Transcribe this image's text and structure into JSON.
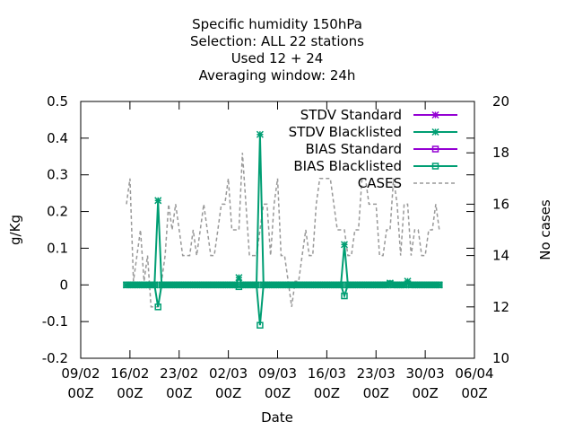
{
  "chart_data": {
    "type": "line",
    "title_lines": [
      "Specific humidity 150hPa",
      "Selection: ALL      22 stations",
      "Used  12 + 24",
      "Averaging window: 24h"
    ],
    "xlabel": "Date",
    "ylabel": "g/Kg",
    "y2label": "No cases",
    "ylim": [
      -0.2,
      0.5
    ],
    "yticks": [
      -0.2,
      -0.1,
      0,
      0.1,
      0.2,
      0.3,
      0.4,
      0.5
    ],
    "ytick_labels": [
      "-0.2",
      "-0.1",
      "0",
      "0.1",
      "0.2",
      "0.3",
      "0.4",
      "0.5"
    ],
    "y2lim": [
      10,
      20
    ],
    "y2ticks": [
      10,
      12,
      14,
      16,
      18,
      20
    ],
    "y2tick_labels": [
      "10",
      "12",
      "14",
      "16",
      "18",
      "20"
    ],
    "xlim": [
      0,
      56
    ],
    "xticks": [
      {
        "x": 0,
        "label1": "09/02",
        "label2": "00Z"
      },
      {
        "x": 7,
        "label1": "16/02",
        "label2": "00Z"
      },
      {
        "x": 14,
        "label1": "23/02",
        "label2": "00Z"
      },
      {
        "x": 21,
        "label1": "02/03",
        "label2": "00Z"
      },
      {
        "x": 28,
        "label1": "09/03",
        "label2": "00Z"
      },
      {
        "x": 35,
        "label1": "16/03",
        "label2": "00Z"
      },
      {
        "x": 42,
        "label1": "23/03",
        "label2": "00Z"
      },
      {
        "x": 49,
        "label1": "30/03",
        "label2": "00Z"
      },
      {
        "x": 56,
        "label1": "06/04",
        "label2": "00Z"
      }
    ],
    "legend_position": "top-right",
    "series": [
      {
        "name": "STDV Standard",
        "color": "#9400d3",
        "marker": "star",
        "axis": "y1",
        "x": [],
        "y": []
      },
      {
        "name": "STDV Blacklisted",
        "color": "#009e73",
        "marker": "star",
        "axis": "y1",
        "x": [
          6.5,
          7,
          7.5,
          8,
          8.5,
          9,
          9.5,
          10,
          10.5,
          11,
          11.5,
          12,
          12.5,
          13,
          13.5,
          14,
          14.5,
          15,
          15.5,
          16,
          16.5,
          17,
          17.5,
          18,
          18.5,
          19,
          19.5,
          20,
          20.5,
          21,
          21.5,
          22,
          22.5,
          23,
          23.5,
          24,
          24.5,
          25,
          25.5,
          26,
          26.5,
          27,
          27.5,
          28,
          28.5,
          29,
          29.5,
          30,
          30.5,
          31,
          31.5,
          32,
          32.5,
          33,
          33.5,
          34,
          34.5,
          35,
          35.5,
          36,
          36.5,
          37,
          37.5,
          38,
          38.5,
          39,
          39.5,
          40,
          40.5,
          41,
          41.5,
          42,
          42.5,
          43,
          43.5,
          44,
          44.5,
          45,
          45.5,
          46,
          46.5,
          47,
          47.5,
          48,
          48.5,
          49,
          49.5,
          50,
          50.5,
          51
        ],
        "y": [
          0,
          0,
          0,
          0,
          0,
          0,
          0,
          0,
          0,
          0.23,
          0,
          0,
          0,
          0,
          0,
          0,
          0,
          0,
          0,
          0,
          0,
          0,
          0,
          0,
          0,
          0,
          0,
          0,
          0,
          0,
          0,
          0,
          0.02,
          0,
          0,
          0,
          0,
          0,
          0.41,
          0,
          0,
          0,
          0,
          0,
          0,
          0,
          0,
          0,
          0,
          0,
          0,
          0,
          0,
          0,
          0,
          0,
          0,
          0,
          0,
          0,
          0,
          0,
          0.11,
          0,
          0,
          0,
          0,
          0,
          0,
          0,
          0,
          0,
          0,
          0,
          0,
          0.005,
          0,
          0,
          0,
          0,
          0.01,
          0,
          0,
          0,
          0,
          0,
          0,
          0,
          0,
          0
        ]
      },
      {
        "name": "BIAS Standard",
        "color": "#9400d3",
        "marker": "square",
        "axis": "y1",
        "x": [],
        "y": []
      },
      {
        "name": "BIAS Blacklisted",
        "color": "#009e73",
        "marker": "square",
        "axis": "y1",
        "x": [
          6.5,
          7,
          7.5,
          8,
          8.5,
          9,
          9.5,
          10,
          10.5,
          11,
          11.5,
          12,
          12.5,
          13,
          13.5,
          14,
          14.5,
          15,
          15.5,
          16,
          16.5,
          17,
          17.5,
          18,
          18.5,
          19,
          19.5,
          20,
          20.5,
          21,
          21.5,
          22,
          22.5,
          23,
          23.5,
          24,
          24.5,
          25,
          25.5,
          26,
          26.5,
          27,
          27.5,
          28,
          28.5,
          29,
          29.5,
          30,
          30.5,
          31,
          31.5,
          32,
          32.5,
          33,
          33.5,
          34,
          34.5,
          35,
          35.5,
          36,
          36.5,
          37,
          37.5,
          38,
          38.5,
          39,
          39.5,
          40,
          40.5,
          41,
          41.5,
          42,
          42.5,
          43,
          43.5,
          44,
          44.5,
          45,
          45.5,
          46,
          46.5,
          47,
          47.5,
          48,
          48.5,
          49,
          49.5,
          50,
          50.5,
          51
        ],
        "y": [
          0,
          0,
          0,
          0,
          0,
          0,
          0,
          0,
          0,
          -0.06,
          0,
          0,
          0,
          0,
          0,
          0,
          0,
          0,
          0,
          0,
          0,
          0,
          0,
          0,
          0,
          0,
          0,
          0,
          0,
          0,
          0,
          0,
          -0.005,
          0,
          0,
          0,
          0,
          0,
          -0.11,
          0,
          0,
          0,
          0,
          0,
          0,
          0,
          0,
          0,
          0,
          0,
          0,
          0,
          0,
          0,
          0,
          0,
          0,
          0,
          0,
          0,
          0,
          0,
          -0.03,
          0,
          0,
          0,
          0,
          0,
          0,
          0,
          0,
          0,
          0,
          0,
          0,
          0.003,
          0,
          0,
          0,
          0,
          0.003,
          0,
          0,
          0,
          0,
          0,
          0,
          0,
          0,
          0
        ]
      },
      {
        "name": "CASES",
        "color": "#999999",
        "marker": "none",
        "dash": true,
        "axis": "y2",
        "x": [
          6.5,
          7,
          7.5,
          8,
          8.5,
          9,
          9.5,
          10,
          10.5,
          11,
          11.5,
          12,
          12.5,
          13,
          13.5,
          14,
          14.5,
          15,
          15.5,
          16,
          16.5,
          17,
          17.5,
          18,
          18.5,
          19,
          19.5,
          20,
          20.5,
          21,
          21.5,
          22,
          22.5,
          23,
          23.5,
          24,
          24.5,
          25,
          25.5,
          26,
          26.5,
          27,
          27.5,
          28,
          28.5,
          29,
          29.5,
          30,
          30.5,
          31,
          31.5,
          32,
          32.5,
          33,
          33.5,
          34,
          34.5,
          35,
          35.5,
          36,
          36.5,
          37,
          37.5,
          38,
          38.5,
          39,
          39.5,
          40,
          40.5,
          41,
          41.5,
          42,
          42.5,
          43,
          43.5,
          44,
          44.5,
          45,
          45.5,
          46,
          46.5,
          47,
          47.5,
          48,
          48.5,
          49,
          49.5,
          50,
          50.5,
          51
        ],
        "y": [
          16,
          17,
          13,
          14,
          15,
          13,
          14,
          12,
          12,
          12,
          13,
          14,
          16,
          15,
          16,
          15,
          14,
          14,
          14,
          15,
          14,
          15,
          16,
          15,
          14,
          14,
          15,
          16,
          16,
          17,
          15,
          15,
          15,
          18,
          16,
          14,
          14,
          14,
          15,
          16,
          16,
          14,
          16,
          17,
          14,
          14,
          13,
          12,
          13,
          13,
          14,
          15,
          14,
          14,
          16,
          17,
          17,
          17,
          17,
          16,
          15,
          15,
          15,
          14,
          14,
          15,
          15,
          17,
          17,
          16,
          16,
          16,
          14,
          14,
          15,
          15,
          17,
          16,
          14,
          16,
          16,
          14,
          15,
          15,
          14,
          14,
          15,
          15,
          16,
          15
        ]
      }
    ]
  }
}
